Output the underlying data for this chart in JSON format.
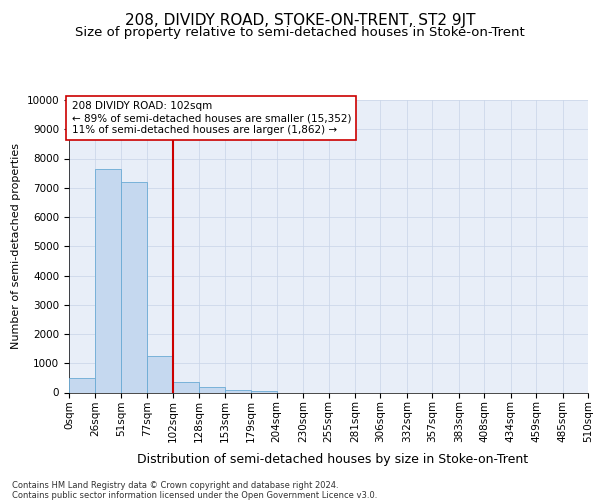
{
  "title": "208, DIVIDY ROAD, STOKE-ON-TRENT, ST2 9JT",
  "subtitle": "Size of property relative to semi-detached houses in Stoke-on-Trent",
  "xlabel": "Distribution of semi-detached houses by size in Stoke-on-Trent",
  "ylabel": "Number of semi-detached properties",
  "footnote1": "Contains HM Land Registry data © Crown copyright and database right 2024.",
  "footnote2": "Contains public sector information licensed under the Open Government Licence v3.0.",
  "annotation_title": "208 DIVIDY ROAD: 102sqm",
  "annotation_line1": "← 89% of semi-detached houses are smaller (15,352)",
  "annotation_line2": "11% of semi-detached houses are larger (1,862) →",
  "property_size": 102,
  "bin_edges": [
    0,
    26,
    51,
    77,
    102,
    128,
    153,
    179,
    204,
    230,
    255,
    281,
    306,
    332,
    357,
    383,
    408,
    434,
    459,
    485,
    510
  ],
  "bar_heights": [
    500,
    7650,
    7200,
    1250,
    350,
    175,
    75,
    50,
    0,
    0,
    0,
    0,
    0,
    0,
    0,
    0,
    0,
    0,
    0,
    0
  ],
  "bar_color": "#c5d8ef",
  "bar_edge_color": "#6aaad4",
  "redline_color": "#cc0000",
  "grid_color": "#c8d4e8",
  "background_color": "#e8eef8",
  "ylim": [
    0,
    10000
  ],
  "yticks": [
    0,
    1000,
    2000,
    3000,
    4000,
    5000,
    6000,
    7000,
    8000,
    9000,
    10000
  ],
  "title_fontsize": 11,
  "subtitle_fontsize": 9.5,
  "xlabel_fontsize": 9,
  "ylabel_fontsize": 8,
  "tick_fontsize": 7.5,
  "footnote_fontsize": 6,
  "annotation_fontsize": 7.5
}
